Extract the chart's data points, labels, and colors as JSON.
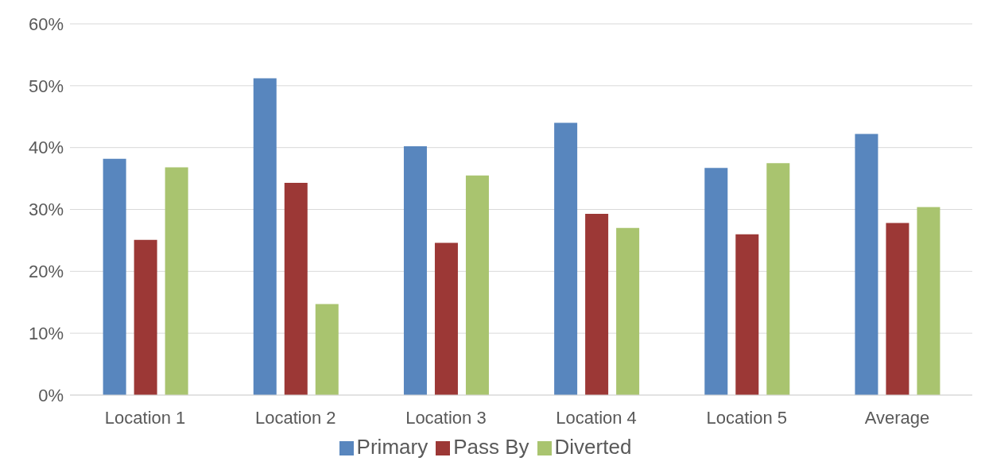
{
  "chart_data": {
    "type": "bar",
    "categories": [
      "Location 1",
      "Location 2",
      "Location 3",
      "Location 4",
      "Location 5",
      "Average"
    ],
    "series": [
      {
        "name": "Primary",
        "color": "#5886be",
        "values": [
          38.2,
          51.2,
          40.2,
          44.0,
          36.7,
          42.2
        ]
      },
      {
        "name": "Pass By",
        "color": "#9c3836",
        "values": [
          25.1,
          34.3,
          24.6,
          29.3,
          26.0,
          27.8
        ]
      },
      {
        "name": "Diverted",
        "color": "#a9c46f",
        "values": [
          36.8,
          14.7,
          35.5,
          27.0,
          37.5,
          30.4
        ]
      }
    ],
    "ylim": [
      0,
      60
    ],
    "yticks": [
      {
        "value": 0,
        "label": "0%"
      },
      {
        "value": 10,
        "label": "10%"
      },
      {
        "value": 20,
        "label": "20%"
      },
      {
        "value": 30,
        "label": "30%"
      },
      {
        "value": 40,
        "label": "40%"
      },
      {
        "value": 50,
        "label": "50%"
      },
      {
        "value": 60,
        "label": "60%"
      }
    ],
    "grid": "y",
    "legend": "bottom"
  }
}
